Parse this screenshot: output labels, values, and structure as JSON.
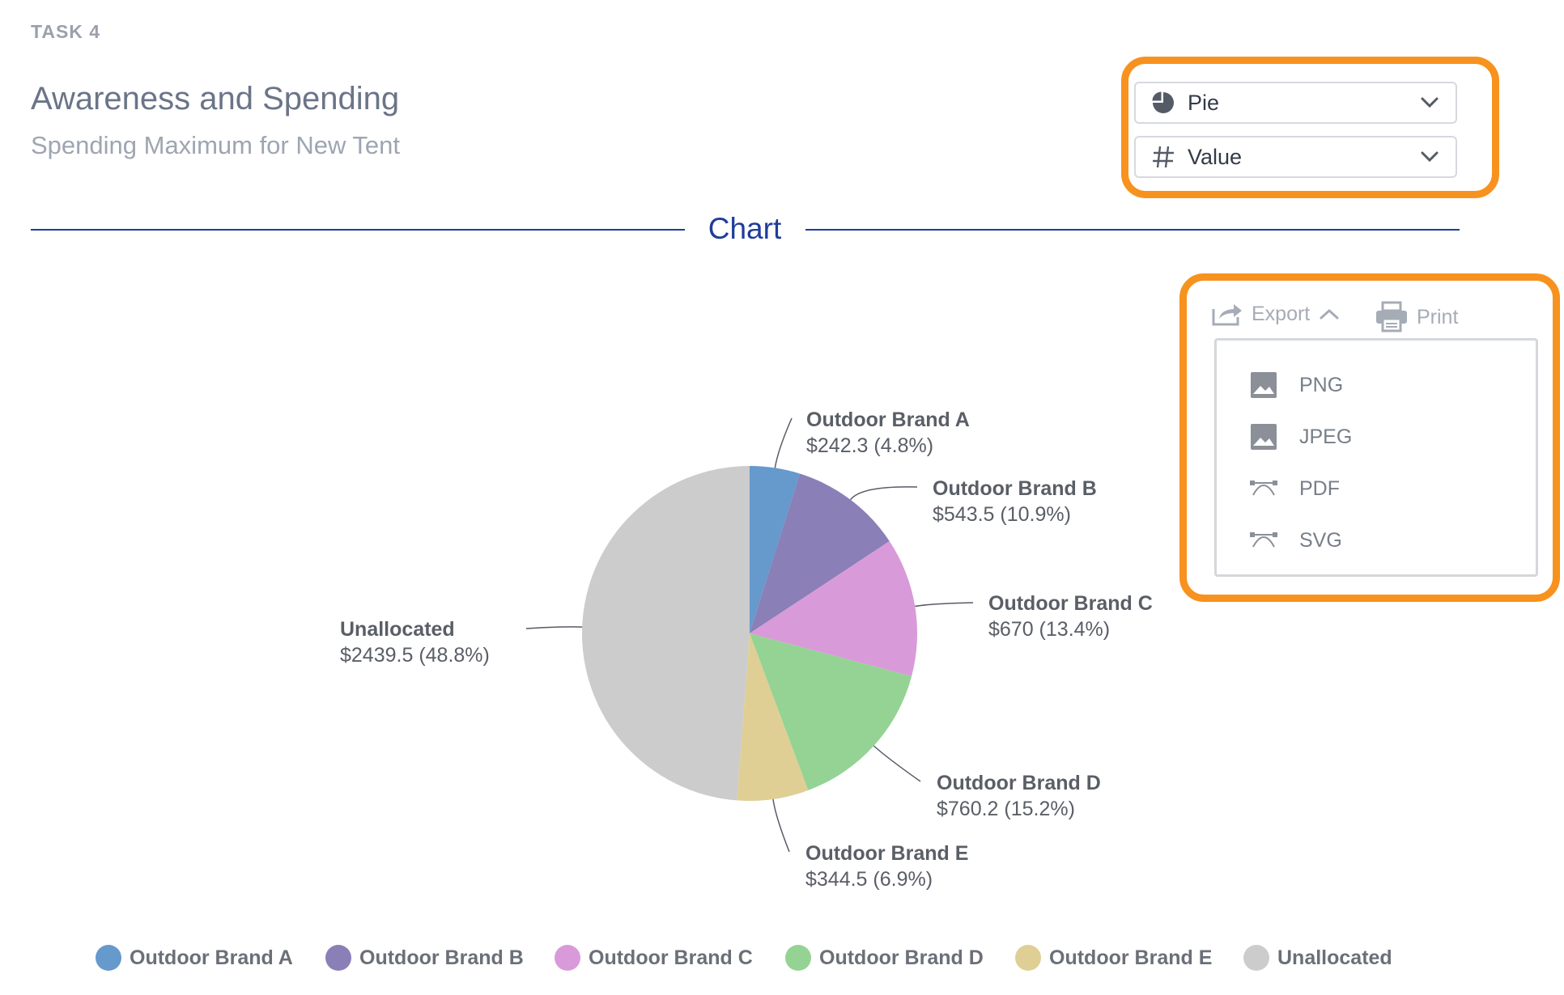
{
  "header": {
    "task_label": "TASK 4",
    "title": "Awareness and Spending",
    "subtitle": "Spending Maximum for New Tent"
  },
  "controls": {
    "chart_type": {
      "value": "Pie",
      "icon": "pie-chart-icon"
    },
    "measure": {
      "value": "Value",
      "icon": "hash-icon"
    }
  },
  "section_heading": "Chart",
  "toolbar": {
    "export_label": "Export",
    "print_label": "Print",
    "export_menu": [
      {
        "label": "PNG",
        "icon": "image-icon"
      },
      {
        "label": "JPEG",
        "icon": "image-icon"
      },
      {
        "label": "PDF",
        "icon": "vector-icon"
      },
      {
        "label": "SVG",
        "icon": "vector-icon"
      }
    ]
  },
  "colors": {
    "accent_orange": "#f7921e",
    "heading_blue": "#1f3d99"
  },
  "chart_data": {
    "type": "pie",
    "title": "",
    "slices": [
      {
        "name": "Outdoor Brand A",
        "value": 242.3,
        "label": "$242.3 (4.8%)",
        "color": "#6699cc"
      },
      {
        "name": "Outdoor Brand B",
        "value": 543.5,
        "label": "$543.5 (10.9%)",
        "color": "#8a7fb7"
      },
      {
        "name": "Outdoor Brand C",
        "value": 670,
        "label": "$670 (13.4%)",
        "color": "#d99ad9"
      },
      {
        "name": "Outdoor Brand D",
        "value": 760.2,
        "label": "$760.2 (15.2%)",
        "color": "#94d394"
      },
      {
        "name": "Outdoor Brand E",
        "value": 344.5,
        "label": "$344.5 (6.9%)",
        "color": "#dfcf94"
      },
      {
        "name": "Unallocated",
        "value": 2439.5,
        "label": "$2439.5 (48.8%)",
        "color": "#cccccc"
      }
    ],
    "legend_position": "bottom"
  }
}
